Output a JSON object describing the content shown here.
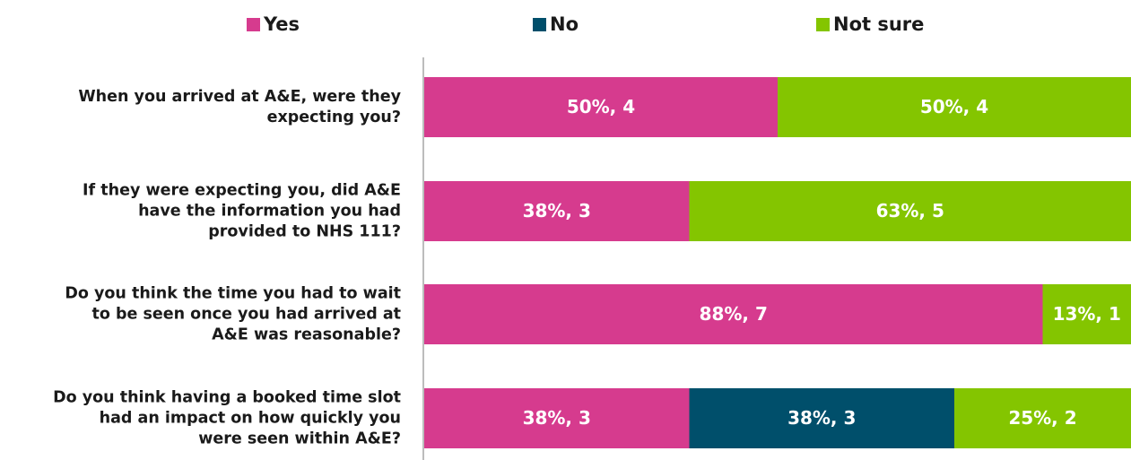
{
  "chart_data": {
    "type": "bar",
    "orientation": "horizontal",
    "stacked": true,
    "xlim": [
      0,
      100
    ],
    "grid": false,
    "legend_position": "top",
    "categories": [
      [
        "When you arrived at A&E, were they",
        "expecting you?"
      ],
      [
        "If they were expecting you, did A&E",
        "have the information you had",
        "provided to NHS 111?"
      ],
      [
        "Do you think the time you had to wait",
        "to be seen once you had arrived at",
        "A&E was reasonable?"
      ],
      [
        "Do you think having a booked time slot",
        "had an impact on how quickly you",
        "were seen within A&E?"
      ]
    ],
    "series": [
      {
        "name": "Yes",
        "color": "#d63b8e",
        "values": [
          50,
          37.5,
          87.5,
          37.5
        ],
        "labels": [
          "50%, 4",
          "38%, 3",
          "88%, 7",
          "38%, 3"
        ]
      },
      {
        "name": "No",
        "color": "#004f6b",
        "values": [
          0,
          0,
          0,
          37.5
        ],
        "labels": [
          "",
          "",
          "",
          "38%, 3"
        ]
      },
      {
        "name": "Not sure",
        "color": "#84c500",
        "values": [
          50,
          62.5,
          12.5,
          25
        ],
        "labels": [
          "50%, 4",
          "63%, 5",
          "13%, 1",
          "25%, 2"
        ]
      }
    ]
  }
}
